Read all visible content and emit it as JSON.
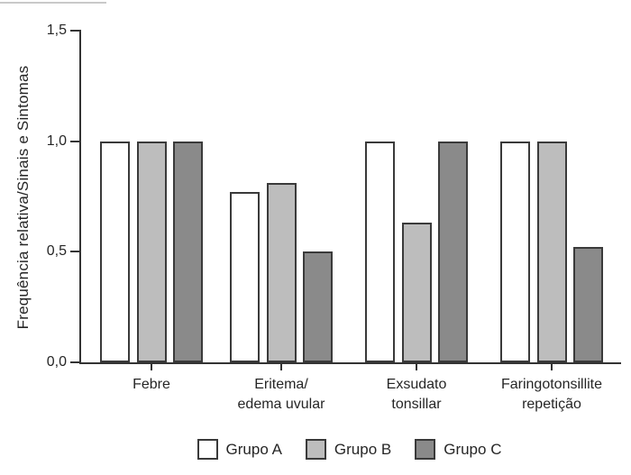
{
  "figure": {
    "background": "#ffffff",
    "text_color": "#262626",
    "axis_color": "#333333",
    "bar_border_color": "#3a3a3a"
  },
  "chart_data": {
    "type": "bar",
    "title": "",
    "xlabel": "",
    "ylabel": "Frequência relativa/Sinais e Sintomas",
    "ylim": [
      0,
      1.5
    ],
    "grid": false,
    "legend_position": "bottom",
    "yticks": [
      {
        "label": "0,0",
        "value": 0
      },
      {
        "label": "0,5",
        "value": 0.5
      },
      {
        "label": "1,0",
        "value": 1.0
      },
      {
        "label": "1,5",
        "value": 1.5
      }
    ],
    "categories": [
      "Febre",
      "Eritema/\nedema uvular",
      "Exsudato\ntonsillar",
      "Faringotonsillite\nrepetição"
    ],
    "series": [
      {
        "name": "Grupo A",
        "color": "#ffffff",
        "values": [
          1.0,
          0.77,
          1.0,
          1.0
        ]
      },
      {
        "name": "Grupo B",
        "color": "#bdbdbd",
        "values": [
          1.0,
          0.81,
          0.63,
          1.0
        ]
      },
      {
        "name": "Grupo C",
        "color": "#8a8a8a",
        "values": [
          1.0,
          0.5,
          1.0,
          0.52
        ]
      }
    ]
  }
}
